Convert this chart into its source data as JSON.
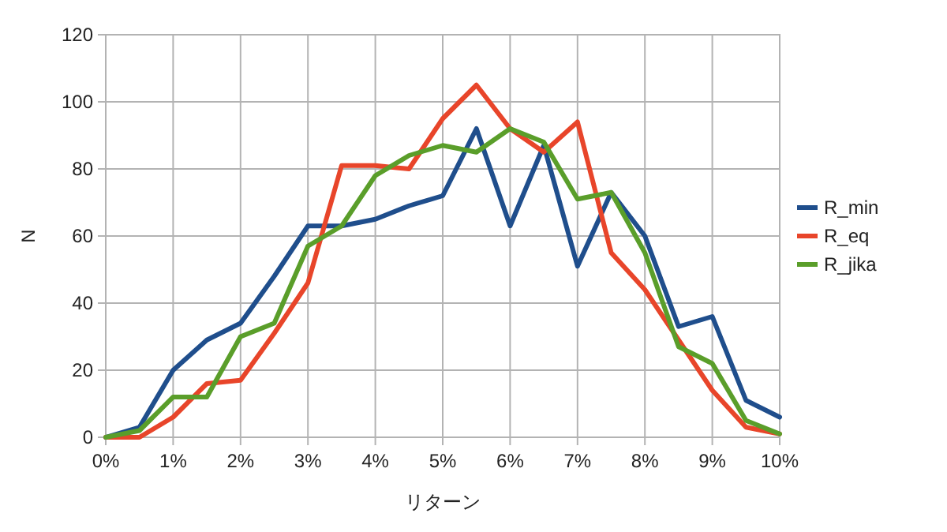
{
  "chart_data": {
    "type": "line",
    "xlabel": "リターン",
    "ylabel": "N",
    "x": [
      0,
      0.5,
      1,
      1.5,
      2,
      2.5,
      3,
      3.5,
      4,
      4.5,
      5,
      5.5,
      6,
      6.5,
      7,
      7.5,
      8,
      8.5,
      9,
      9.5,
      10
    ],
    "series": [
      {
        "name": "R_min",
        "color": "#1f4e8c",
        "values": [
          0,
          3,
          20,
          29,
          34,
          48,
          63,
          63,
          65,
          69,
          72,
          92,
          63,
          87,
          51,
          73,
          60,
          33,
          36,
          11,
          6
        ]
      },
      {
        "name": "R_eq",
        "color": "#e8452a",
        "values": [
          0,
          0,
          6,
          16,
          17,
          31,
          46,
          81,
          81,
          80,
          95,
          105,
          92,
          85,
          94,
          55,
          44,
          29,
          14,
          3,
          1
        ]
      },
      {
        "name": "R_jika",
        "color": "#5a9e2a",
        "values": [
          0,
          2,
          12,
          12,
          30,
          34,
          57,
          63,
          78,
          84,
          87,
          85,
          92,
          88,
          71,
          73,
          55,
          27,
          22,
          5,
          1
        ]
      }
    ],
    "xlim": [
      0,
      10
    ],
    "ylim": [
      0,
      120
    ],
    "xticks": [
      {
        "value": 0,
        "label": "0%"
      },
      {
        "value": 1,
        "label": "1%"
      },
      {
        "value": 2,
        "label": "2%"
      },
      {
        "value": 3,
        "label": "3%"
      },
      {
        "value": 4,
        "label": "4%"
      },
      {
        "value": 5,
        "label": "5%"
      },
      {
        "value": 6,
        "label": "6%"
      },
      {
        "value": 7,
        "label": "7%"
      },
      {
        "value": 8,
        "label": "8%"
      },
      {
        "value": 9,
        "label": "9%"
      },
      {
        "value": 10,
        "label": "10%"
      }
    ],
    "yticks": [
      0,
      20,
      40,
      60,
      80,
      100,
      120
    ],
    "grid": true,
    "legend": "right"
  }
}
